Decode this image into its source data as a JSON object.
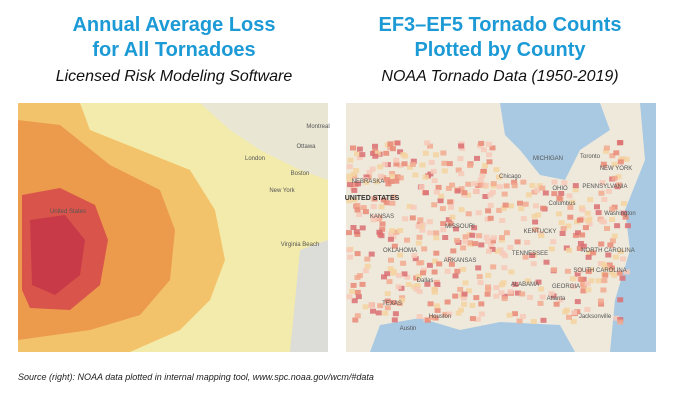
{
  "left": {
    "title_lines": [
      "Annual Average Loss",
      "for All Tornadoes"
    ],
    "subtitle": "Licensed Risk Modeling Software",
    "labels": [
      "Montreal",
      "Ottawa",
      "London",
      "Boston",
      "New York",
      "United States",
      "Virginia Beach"
    ]
  },
  "right": {
    "title_lines": [
      "EF3–EF5 Tornado Counts",
      "Plotted by County"
    ],
    "subtitle": "NOAA Tornado Data (1950-2019)",
    "labels": [
      "MICHIGAN",
      "Toronto",
      "NEW YORK",
      "NEBRASKA",
      "UNITED STATES",
      "KANSAS",
      "OHIO",
      "PENNSYLVANIA",
      "Chicago",
      "Columbus",
      "Washington",
      "MISSOURI",
      "KENTUCKY",
      "OKLAHOMA",
      "ARKANSAS",
      "TENNESSEE",
      "NORTH CAROLINA",
      "SOUTH CAROLINA",
      "Dallas",
      "ALABAMA",
      "GEORGIA",
      "Atlanta",
      "TEXAS",
      "Houston",
      "Austin",
      "Jacksonville"
    ]
  },
  "source": "Source (right): NOAA data plotted in internal mapping tool, www.spc.noaa.gov/wcm/#data"
}
